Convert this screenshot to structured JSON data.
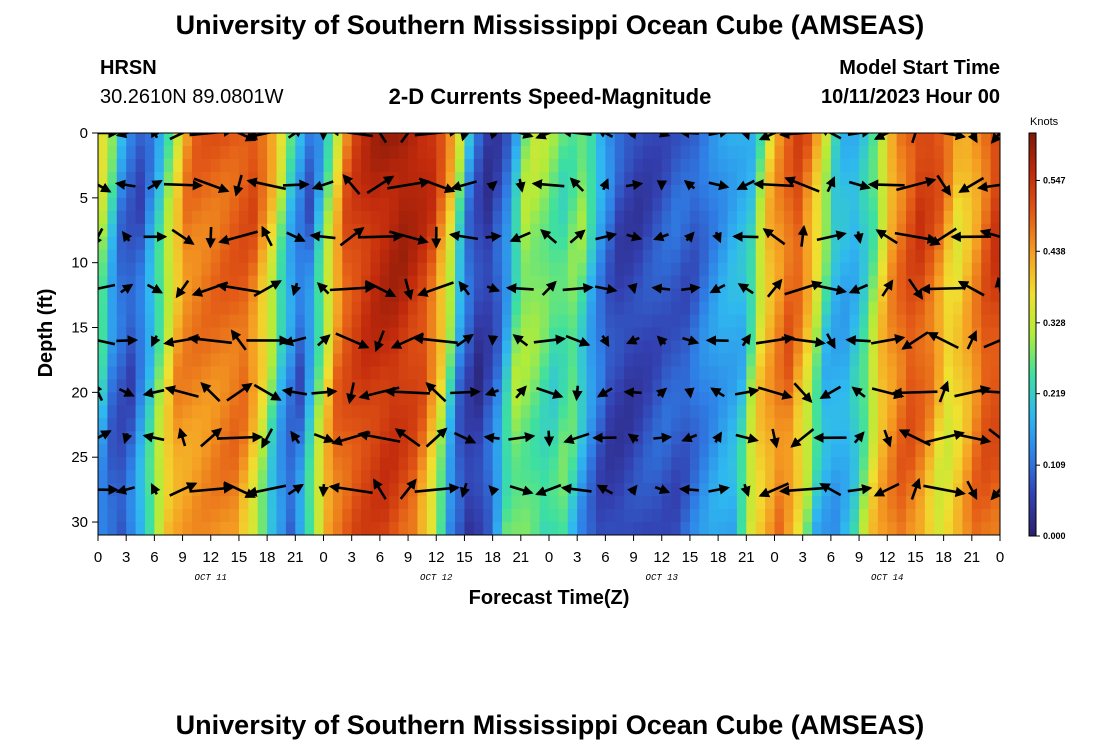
{
  "header": {
    "title": "University of Southern Mississippi Ocean Cube (AMSEAS)",
    "station": "HRSN",
    "coords": "30.2610N  89.0801W",
    "subtitle": "2-D Currents Speed-Magnitude",
    "start_label": "Model Start Time",
    "start_value": "10/11/2023 Hour 00"
  },
  "footer": {
    "title": "University of Southern Mississippi Ocean Cube (AMSEAS)"
  },
  "chart_data": {
    "type": "heatmap",
    "title": "2-D Currents Speed-Magnitude",
    "xlabel": "Forecast Time(Z)",
    "ylabel": "Depth (ft)",
    "xlim_hours": [
      0,
      96
    ],
    "ylim": [
      0,
      31
    ],
    "x_tick_labels": [
      "0",
      "3",
      "6",
      "9",
      "12",
      "15",
      "18",
      "21",
      "0",
      "3",
      "6",
      "9",
      "12",
      "15",
      "18",
      "21",
      "0",
      "3",
      "6",
      "9",
      "12",
      "15",
      "18",
      "21",
      "0",
      "3",
      "6",
      "9",
      "12",
      "15",
      "18",
      "21",
      "0"
    ],
    "y_ticks": [
      0,
      5,
      10,
      15,
      20,
      25,
      30
    ],
    "day_labels": [
      {
        "hour": 12,
        "label": "OCT 11"
      },
      {
        "hour": 36,
        "label": "OCT 12"
      },
      {
        "hour": 60,
        "label": "OCT 13"
      },
      {
        "hour": 84,
        "label": "OCT 14"
      }
    ],
    "colorbar": {
      "units": "Knots",
      "ticks": [
        0.0,
        0.109,
        0.219,
        0.328,
        0.438,
        0.547
      ],
      "tick_labels": [
        "0.000",
        "0.109",
        "0.219",
        "0.328",
        "0.438",
        "0.547"
      ],
      "max": 0.62,
      "colors": [
        "#2a1f6e",
        "#3340b0",
        "#2f7fe6",
        "#2fb8f0",
        "#3ee0a0",
        "#b0ec3a",
        "#f0e030",
        "#f5a023",
        "#e35a16",
        "#c22a0c",
        "#7e1808"
      ]
    },
    "vector_depths_ft": [
      0,
      4,
      8,
      12,
      16,
      20,
      23.5,
      27.5
    ],
    "speed_profile_knots": [
      {
        "hour": 0,
        "value": 0.4
      },
      {
        "hour": 1.5,
        "value": 0.28
      },
      {
        "hour": 3,
        "value": 0.12
      },
      {
        "hour": 5,
        "value": 0.08
      },
      {
        "hour": 7,
        "value": 0.22
      },
      {
        "hour": 10,
        "value": 0.48
      },
      {
        "hour": 14,
        "value": 0.5
      },
      {
        "hour": 17,
        "value": 0.52
      },
      {
        "hour": 19,
        "value": 0.4
      },
      {
        "hour": 21,
        "value": 0.2
      },
      {
        "hour": 23,
        "value": 0.09
      },
      {
        "hour": 25,
        "value": 0.3
      },
      {
        "hour": 27,
        "value": 0.52
      },
      {
        "hour": 30,
        "value": 0.58
      },
      {
        "hour": 33,
        "value": 0.6
      },
      {
        "hour": 36,
        "value": 0.55
      },
      {
        "hour": 38,
        "value": 0.4
      },
      {
        "hour": 40,
        "value": 0.12
      },
      {
        "hour": 42,
        "value": 0.04
      },
      {
        "hour": 44,
        "value": 0.12
      },
      {
        "hour": 46,
        "value": 0.32
      },
      {
        "hour": 48,
        "value": 0.3
      },
      {
        "hour": 50,
        "value": 0.25
      },
      {
        "hour": 52,
        "value": 0.3
      },
      {
        "hour": 54,
        "value": 0.16
      },
      {
        "hour": 56,
        "value": 0.07
      },
      {
        "hour": 58,
        "value": 0.06
      },
      {
        "hour": 60,
        "value": 0.08
      },
      {
        "hour": 62,
        "value": 0.1
      },
      {
        "hour": 64,
        "value": 0.09
      },
      {
        "hour": 66,
        "value": 0.14
      },
      {
        "hour": 68,
        "value": 0.18
      },
      {
        "hour": 70,
        "value": 0.2
      },
      {
        "hour": 72,
        "value": 0.42
      },
      {
        "hour": 75,
        "value": 0.53
      },
      {
        "hour": 77,
        "value": 0.4
      },
      {
        "hour": 79,
        "value": 0.2
      },
      {
        "hour": 81,
        "value": 0.18
      },
      {
        "hour": 83,
        "value": 0.26
      },
      {
        "hour": 85,
        "value": 0.45
      },
      {
        "hour": 88,
        "value": 0.55
      },
      {
        "hour": 90,
        "value": 0.5
      },
      {
        "hour": 92,
        "value": 0.38
      },
      {
        "hour": 94,
        "value": 0.45
      },
      {
        "hour": 96,
        "value": 0.55
      }
    ]
  }
}
